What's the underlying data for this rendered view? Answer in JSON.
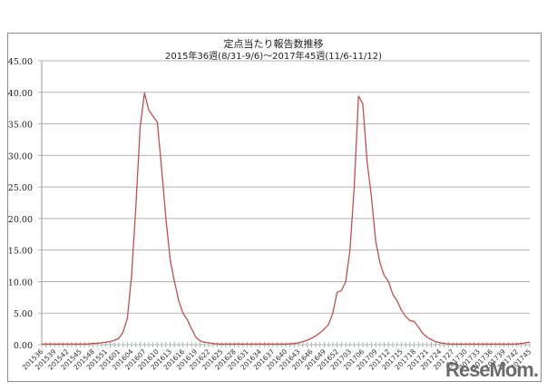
{
  "chart_data": {
    "type": "line",
    "title": "定点当たり報告数推移",
    "subtitle": "2015年36週(8/31-9/6)〜2017年45週(11/6-11/12)",
    "xlabel": "",
    "ylabel": "",
    "ylim": [
      0,
      45
    ],
    "yticks": [
      "0.00",
      "5.00",
      "10.00",
      "15.00",
      "20.00",
      "25.00",
      "30.00",
      "35.00",
      "40.00",
      "45.00"
    ],
    "grid": true,
    "legend": null,
    "line_color": "#c0504d",
    "x_tick_labels": [
      "201536",
      "201539",
      "201542",
      "201545",
      "201548",
      "201551",
      "201601",
      "201604",
      "201607",
      "201610",
      "201613",
      "201616",
      "201619",
      "201622",
      "201625",
      "201628",
      "201631",
      "201634",
      "201637",
      "201640",
      "201643",
      "201646",
      "201649",
      "201652",
      "201703",
      "201706",
      "201709",
      "201712",
      "201715",
      "201718",
      "201721",
      "201724",
      "201727",
      "201730",
      "201733",
      "201736",
      "201739",
      "201742",
      "201745"
    ],
    "series": [
      {
        "name": "定点当たり報告数",
        "values": [
          0.1,
          0.1,
          0.1,
          0.1,
          0.1,
          0.1,
          0.1,
          0.1,
          0.1,
          0.1,
          0.1,
          0.15,
          0.2,
          0.25,
          0.3,
          0.4,
          0.5,
          0.7,
          1.0,
          2.0,
          4.2,
          11.0,
          22.0,
          34.5,
          39.9,
          37.2,
          36.2,
          35.3,
          28.0,
          20.0,
          13.5,
          10.0,
          7.0,
          5.0,
          4.0,
          2.5,
          1.2,
          0.6,
          0.4,
          0.3,
          0.2,
          0.15,
          0.1,
          0.1,
          0.1,
          0.1,
          0.1,
          0.1,
          0.1,
          0.1,
          0.1,
          0.1,
          0.1,
          0.1,
          0.1,
          0.1,
          0.1,
          0.1,
          0.15,
          0.2,
          0.3,
          0.5,
          0.7,
          1.0,
          1.4,
          1.9,
          2.5,
          3.2,
          5.0,
          8.3,
          8.6,
          10.0,
          15.0,
          25.0,
          39.4,
          38.2,
          29.0,
          23.5,
          16.5,
          13.0,
          11.0,
          10.0,
          8.0,
          7.0,
          5.5,
          4.5,
          3.8,
          3.7,
          2.8,
          1.8,
          1.2,
          0.8,
          0.5,
          0.3,
          0.2,
          0.15,
          0.1,
          0.1,
          0.1,
          0.1,
          0.1,
          0.1,
          0.1,
          0.1,
          0.1,
          0.1,
          0.1,
          0.1,
          0.1,
          0.1,
          0.1,
          0.15,
          0.2,
          0.3,
          0.4
        ]
      }
    ]
  },
  "watermark": "ReseMom."
}
